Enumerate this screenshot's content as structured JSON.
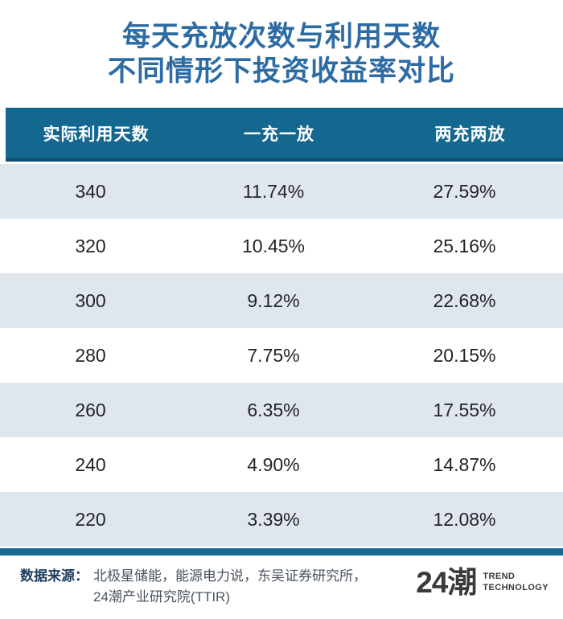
{
  "title": {
    "line1": "每天充放次数与利用天数",
    "line2": "不同情形下投资收益率对比"
  },
  "table": {
    "columns": [
      "实际利用天数",
      "一充一放",
      "两充两放"
    ],
    "rows": [
      [
        "340",
        "11.74%",
        "27.59%"
      ],
      [
        "320",
        "10.45%",
        "25.16%"
      ],
      [
        "300",
        "9.12%",
        "22.68%"
      ],
      [
        "280",
        "7.75%",
        "20.15%"
      ],
      [
        "260",
        "6.35%",
        "17.55%"
      ],
      [
        "240",
        "4.90%",
        "14.87%"
      ],
      [
        "220",
        "3.39%",
        "12.08%"
      ]
    ]
  },
  "footer": {
    "source_label": "数据来源：",
    "source_line1": "北极星储能，能源电力说，东吴证券研究所，",
    "source_line2": "24潮产业研究院(TTIR)",
    "logo_text": "24潮",
    "logo_sub1": "TREND",
    "logo_sub2": "TECHNOLOGY"
  },
  "colors": {
    "title_blue": "#2d6ba3",
    "header_teal": "#14678f",
    "header_border": "#0d4d72",
    "row_light": "#dfe7ed",
    "row_white": "#ffffff",
    "footer_bar": "#17698e",
    "source_label": "#1e3c5e",
    "source_text": "#4b545e",
    "logo_dark": "#3a3a3c"
  },
  "chart_data": {
    "type": "table",
    "title": "每天充放次数与利用天数不同情形下投资收益率对比",
    "columns": [
      "实际利用天数",
      "一充一放",
      "两充两放"
    ],
    "categories": [
      340,
      320,
      300,
      280,
      260,
      240,
      220
    ],
    "series": [
      {
        "name": "一充一放",
        "values_pct": [
          11.74,
          10.45,
          9.12,
          7.75,
          6.35,
          4.9,
          3.39
        ]
      },
      {
        "name": "两充两放",
        "values_pct": [
          27.59,
          25.16,
          22.68,
          20.15,
          17.55,
          14.87,
          12.08
        ]
      }
    ],
    "source": "北极星储能，能源电力说，东吴证券研究所，24潮产业研究院(TTIR)"
  }
}
